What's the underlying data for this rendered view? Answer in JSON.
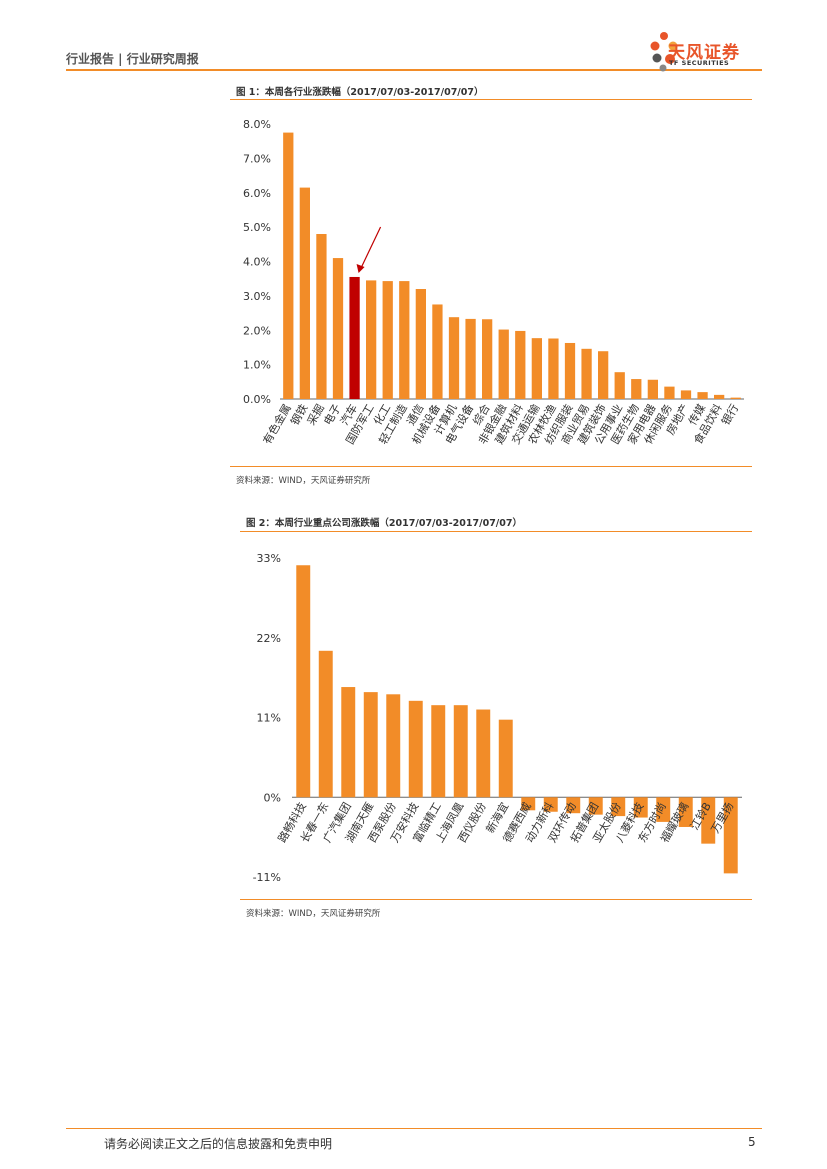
{
  "header": {
    "left_text": "行业报告 | 行业研究周报",
    "logo_name": "天风证券",
    "logo_sub": "TF SECURITIES"
  },
  "figure1": {
    "title": "图 1：本周各行业涨跌幅（2017/07/03-2017/07/07）",
    "source": "资料来源：WIND，天风证券研究所"
  },
  "figure2": {
    "title": "图 2：本周行业重点公司涨跌幅（2017/07/03-2017/07/07）",
    "source": "资料来源：WIND，天风证券研究所"
  },
  "chart_data": [
    {
      "type": "bar",
      "categories": [
        "有色金属",
        "钢铁",
        "采掘",
        "电子",
        "汽车",
        "国防军工",
        "化工",
        "轻工制造",
        "通信",
        "机械设备",
        "计算机",
        "电气设备",
        "综合",
        "非银金融",
        "建筑材料",
        "交通运输",
        "农林牧渔",
        "纺织服装",
        "商业贸易",
        "建筑装饰",
        "公用事业",
        "医药生物",
        "家用电器",
        "休闲服务",
        "房地产",
        "传媒",
        "食品饮料",
        "银行"
      ],
      "values": [
        7.75,
        6.15,
        4.8,
        4.1,
        3.55,
        3.45,
        3.43,
        3.43,
        3.2,
        2.75,
        2.38,
        2.33,
        2.32,
        2.02,
        1.98,
        1.77,
        1.76,
        1.63,
        1.46,
        1.39,
        0.78,
        0.58,
        0.56,
        0.36,
        0.25,
        0.2,
        0.12,
        0.04
      ],
      "highlight_index": 4,
      "ylim": [
        0,
        8
      ],
      "yticks": [
        "0.0%",
        "1.0%",
        "2.0%",
        "3.0%",
        "4.0%",
        "5.0%",
        "6.0%",
        "7.0%",
        "8.0%"
      ],
      "colors": {
        "bar": "#f28c28",
        "highlight": "#c00000",
        "arrow": "#c00000"
      }
    },
    {
      "type": "bar",
      "categories": [
        "路畅科技",
        "长春一东",
        "广汽集团",
        "湖南天雁",
        "西泵股份",
        "万安科技",
        "富临精工",
        "上海凤凰",
        "西仪股份",
        "新海宜",
        "德赛西威",
        "动力新科",
        "双环传动",
        "拓普集团",
        "亚太股份",
        "八菱科技",
        "东方时尚",
        "福耀玻璃",
        "江铃B",
        "万里扬"
      ],
      "labels_visible": [
        "路畅科技",
        "长春一东",
        "广汽集团",
        "湖南天雁",
        "西泵股份",
        "万安科技",
        "富临精工",
        "上海凤凰",
        "西仪股份",
        "新海宜",
        "德赛西威",
        "动力新科",
        "双环传动",
        "拓普集团",
        "亚太股份",
        "八菱科技",
        "东方时尚",
        "福耀玻璃",
        "江铃B",
        "万里扬"
      ],
      "values": [
        32,
        20.2,
        15.2,
        14.5,
        14.2,
        13.3,
        12.7,
        12.7,
        12.1,
        10.7,
        -1.8,
        -2.0,
        -2.2,
        -2.4,
        -2.6,
        -2.8,
        -3.4,
        -4.1,
        -6.4,
        -10.5
      ],
      "ylim": [
        -11,
        33
      ],
      "yticks": [
        "-11%",
        "0%",
        "11%",
        "22%",
        "33%"
      ],
      "colors": {
        "bar": "#f28c28"
      }
    }
  ],
  "footer": {
    "disclaimer": "请务必阅读正文之后的信息披露和免责申明",
    "page": "5"
  }
}
